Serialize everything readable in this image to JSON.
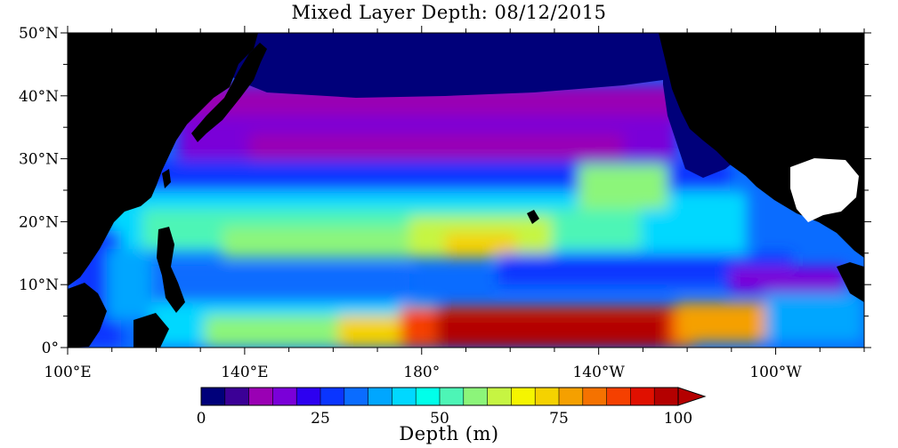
{
  "title": "Mixed Layer Depth: 08/12/2015",
  "map": {
    "lat_ticks": [
      "50°N",
      "40°N",
      "30°N",
      "20°N",
      "10°N",
      "0°"
    ],
    "lon_ticks": [
      "100°E",
      "140°E",
      "180°",
      "140°W",
      "100°W"
    ],
    "land_color": "#000000",
    "no_data_color": "#ffffff"
  },
  "colorbar": {
    "label": "Depth (m)",
    "tick_labels": [
      "0",
      "25",
      "50",
      "75",
      "100"
    ],
    "colors": [
      "#00007a",
      "#3b0096",
      "#9a00b4",
      "#7a00d8",
      "#2d00f0",
      "#0a35ff",
      "#0a6cff",
      "#00a6ff",
      "#00d8ff",
      "#00ffea",
      "#4df5b6",
      "#8cf57a",
      "#c6f542",
      "#f5f500",
      "#f5d200",
      "#f5a000",
      "#f57200",
      "#f54000",
      "#e01000",
      "#b40000"
    ]
  },
  "chart_data": {
    "type": "heatmap",
    "title": "Mixed Layer Depth: 08/12/2015",
    "xlabel": "",
    "ylabel": "",
    "x_ticks": [
      "100°E",
      "140°E",
      "180°",
      "140°W",
      "100°W"
    ],
    "y_ticks": [
      "50°N",
      "40°N",
      "30°N",
      "20°N",
      "10°N",
      "0°"
    ],
    "colorbar_label": "Depth (m)",
    "colorbar_range": [
      0,
      100
    ],
    "colorbar_ticks": [
      0,
      25,
      50,
      75,
      100
    ],
    "extend": "max"
  }
}
